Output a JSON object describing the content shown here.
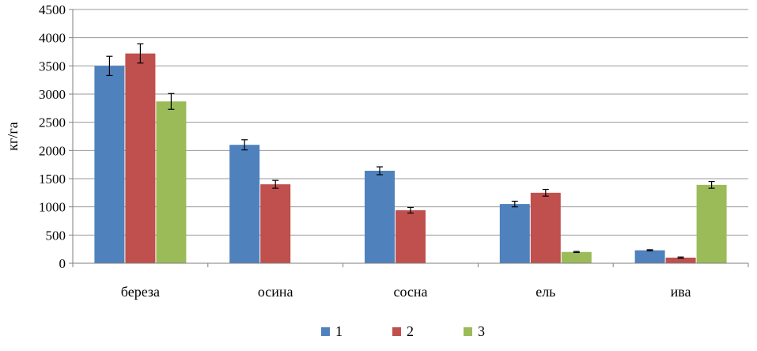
{
  "chart_data": {
    "type": "bar",
    "title": "",
    "xlabel": "",
    "ylabel": "кг/га",
    "ylim": [
      0,
      4500
    ],
    "yticks": [
      0,
      500,
      1000,
      1500,
      2000,
      2500,
      3000,
      3500,
      4000,
      4500
    ],
    "grid": true,
    "legend_position": "bottom",
    "categories": [
      "береза",
      "осина",
      "сосна",
      "ель",
      "ива"
    ],
    "series": [
      {
        "name": "1",
        "color": "#4F81BD",
        "values": [
          3500,
          2100,
          1640,
          1050,
          230
        ],
        "errors": [
          170,
          90,
          70,
          50,
          10
        ]
      },
      {
        "name": "2",
        "color": "#C0504D",
        "values": [
          3720,
          1400,
          940,
          1250,
          100
        ],
        "errors": [
          170,
          70,
          50,
          60,
          10
        ]
      },
      {
        "name": "3",
        "color": "#9BBB59",
        "values": [
          2870,
          null,
          null,
          200,
          1390
        ],
        "errors": [
          140,
          null,
          null,
          10,
          60
        ]
      }
    ]
  }
}
